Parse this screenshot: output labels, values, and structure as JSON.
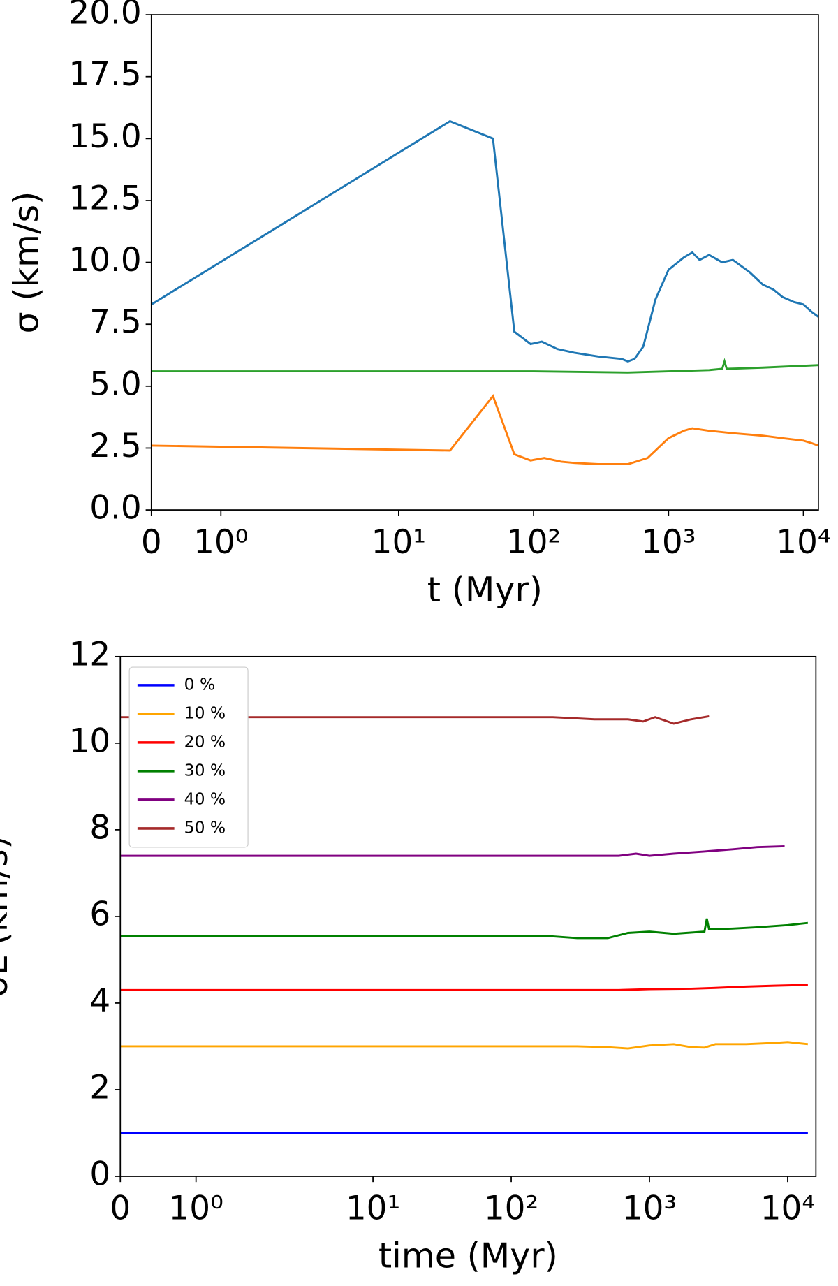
{
  "chart_data": [
    {
      "type": "line",
      "xscale": "symlog",
      "linthresh": 2.33,
      "linscale": 1.2,
      "ylabel": "σ (km/s)",
      "xlabel": "t (Myr)",
      "xlim": [
        0,
        12900
      ],
      "ylim": [
        0,
        20
      ],
      "xticks": [
        0,
        {
          "value": 1,
          "label": "10⁰"
        },
        {
          "value": 10,
          "label": "10¹"
        },
        {
          "value": 100,
          "label": "10²"
        },
        {
          "value": 1000,
          "label": "10³"
        },
        {
          "value": 10000,
          "label": "10⁴"
        }
      ],
      "yticks": [
        {
          "value": 0,
          "label": "0.0"
        },
        2.5,
        {
          "value": 5,
          "label": "5.0"
        },
        7.5,
        {
          "value": 10,
          "label": "10.0"
        },
        12.5,
        {
          "value": 15,
          "label": "15.0"
        },
        17.5,
        {
          "value": 20,
          "label": "20.0"
        }
      ],
      "series": [
        {
          "color": "#1f77b4",
          "x": [
            0,
            24,
            50,
            72,
            95,
            115,
            150,
            200,
            300,
            450,
            500,
            560,
            650,
            800,
            1000,
            1300,
            1500,
            1700,
            2000,
            2500,
            3000,
            4000,
            5000,
            6000,
            7000,
            8500,
            10000,
            11500,
            12900
          ],
          "values": [
            8.3,
            15.7,
            15.0,
            7.2,
            6.7,
            6.8,
            6.5,
            6.35,
            6.2,
            6.1,
            6.0,
            6.1,
            6.6,
            8.5,
            9.7,
            10.2,
            10.4,
            10.1,
            10.3,
            10.0,
            10.1,
            9.6,
            9.1,
            8.9,
            8.6,
            8.4,
            8.3,
            8.0,
            7.8
          ]
        },
        {
          "color": "#ff7f0e",
          "x": [
            0,
            24,
            50,
            72,
            95,
            120,
            160,
            200,
            300,
            500,
            700,
            1000,
            1300,
            1500,
            2000,
            3000,
            5000,
            7000,
            10000,
            11500,
            12900
          ],
          "values": [
            2.6,
            2.4,
            4.6,
            2.25,
            2.0,
            2.1,
            1.95,
            1.9,
            1.85,
            1.85,
            2.1,
            2.9,
            3.2,
            3.3,
            3.2,
            3.1,
            3.0,
            2.9,
            2.8,
            2.7,
            2.6
          ]
        },
        {
          "color": "#2ca02c",
          "x": [
            0,
            100,
            500,
            1000,
            2000,
            2500,
            2600,
            2700,
            3500,
            5000,
            8000,
            12900
          ],
          "values": [
            5.6,
            5.6,
            5.55,
            5.6,
            5.65,
            5.7,
            6.0,
            5.7,
            5.72,
            5.75,
            5.8,
            5.85
          ]
        }
      ]
    },
    {
      "type": "line",
      "xscale": "symlog",
      "linthresh": 2.1,
      "linscale": 1.15,
      "ylabel": "σL (km/s)",
      "xlabel": "time (Myr)",
      "xlim": [
        0,
        16000
      ],
      "ylim": [
        0,
        12
      ],
      "legend": "upper left",
      "xticks": [
        0,
        {
          "value": 1,
          "label": "10⁰"
        },
        {
          "value": 10,
          "label": "10¹"
        },
        {
          "value": 100,
          "label": "10²"
        },
        {
          "value": 1000,
          "label": "10³"
        },
        {
          "value": 10000,
          "label": "10⁴"
        }
      ],
      "yticks": [
        0,
        2,
        4,
        6,
        8,
        10,
        12
      ],
      "series": [
        {
          "name": "0 %",
          "color": "#0000ff",
          "x": [
            0,
            14000
          ],
          "values": [
            1.0,
            1.0
          ]
        },
        {
          "name": "10 %",
          "color": "#ffa500",
          "x": [
            0,
            300,
            500,
            700,
            1000,
            1500,
            2000,
            2500,
            3000,
            5000,
            8000,
            10000,
            14000
          ],
          "values": [
            3.0,
            3.0,
            2.98,
            2.95,
            3.02,
            3.05,
            2.98,
            2.97,
            3.05,
            3.05,
            3.08,
            3.1,
            3.05
          ]
        },
        {
          "name": "20 %",
          "color": "#ff0000",
          "x": [
            0,
            300,
            600,
            1000,
            2000,
            3000,
            5000,
            8000,
            14000
          ],
          "values": [
            4.3,
            4.3,
            4.3,
            4.32,
            4.33,
            4.35,
            4.38,
            4.4,
            4.42
          ]
        },
        {
          "name": "30 %",
          "color": "#008000",
          "x": [
            0,
            180,
            300,
            500,
            700,
            1000,
            1500,
            2500,
            2600,
            2700,
            4000,
            6000,
            10000,
            14000
          ],
          "values": [
            5.55,
            5.55,
            5.5,
            5.5,
            5.62,
            5.65,
            5.6,
            5.65,
            5.95,
            5.7,
            5.72,
            5.75,
            5.8,
            5.85
          ]
        },
        {
          "name": "40 %",
          "color": "#800080",
          "x": [
            0,
            300,
            600,
            800,
            1000,
            1500,
            2500,
            4000,
            6000,
            9500
          ],
          "values": [
            7.4,
            7.4,
            7.4,
            7.45,
            7.4,
            7.45,
            7.5,
            7.55,
            7.6,
            7.62
          ]
        },
        {
          "name": "50 %",
          "color": "#a52a2a",
          "x": [
            0,
            200,
            400,
            700,
            900,
            1100,
            1500,
            2000,
            2700
          ],
          "values": [
            10.6,
            10.6,
            10.55,
            10.55,
            10.5,
            10.6,
            10.45,
            10.55,
            10.62
          ]
        }
      ]
    }
  ]
}
